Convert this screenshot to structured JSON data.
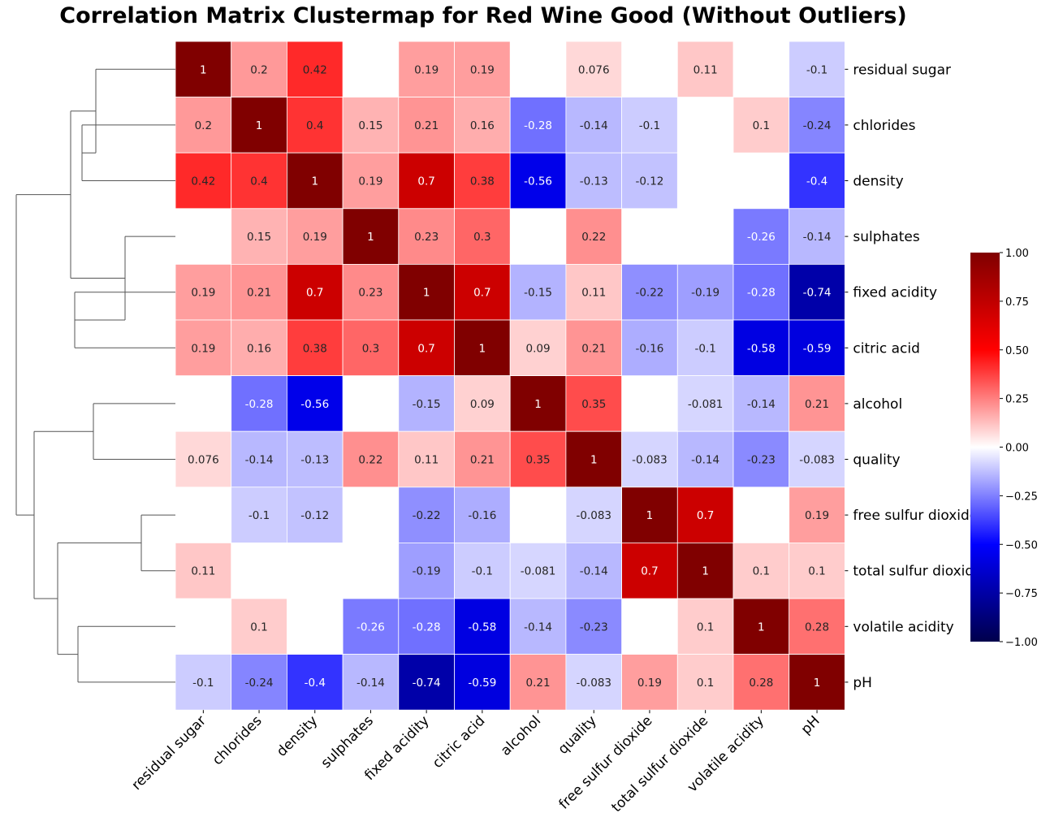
{
  "chart_data": {
    "type": "heatmap",
    "title": "Correlation Matrix Clustermap for Red Wine Good (Without Outliers)",
    "row_labels": [
      "residual sugar",
      "chlorides",
      "density",
      "sulphates",
      "fixed acidity",
      "citric acid",
      "alcohol",
      "quality",
      "free sulfur dioxide",
      "total sulfur dioxide",
      "volatile acidity",
      "pH"
    ],
    "col_labels": [
      "residual sugar",
      "chlorides",
      "density",
      "sulphates",
      "fixed acidity",
      "citric acid",
      "alcohol",
      "quality",
      "free sulfur dioxide",
      "total sulfur dioxide",
      "volatile acidity",
      "pH"
    ],
    "values": [
      [
        1,
        0.2,
        0.42,
        null,
        0.19,
        0.19,
        null,
        0.076,
        null,
        0.11,
        null,
        -0.1
      ],
      [
        0.2,
        1,
        0.4,
        0.15,
        0.21,
        0.16,
        -0.28,
        -0.14,
        -0.1,
        null,
        0.1,
        -0.24
      ],
      [
        0.42,
        0.4,
        1,
        0.19,
        0.7,
        0.38,
        -0.56,
        -0.13,
        -0.12,
        null,
        null,
        -0.4
      ],
      [
        null,
        0.15,
        0.19,
        1,
        0.23,
        0.3,
        null,
        0.22,
        null,
        null,
        -0.26,
        -0.14
      ],
      [
        0.19,
        0.21,
        0.7,
        0.23,
        1,
        0.7,
        -0.15,
        0.11,
        -0.22,
        -0.19,
        -0.28,
        -0.74
      ],
      [
        0.19,
        0.16,
        0.38,
        0.3,
        0.7,
        1,
        0.09,
        0.21,
        -0.16,
        -0.1,
        -0.58,
        -0.59
      ],
      [
        null,
        -0.28,
        -0.56,
        null,
        -0.15,
        0.09,
        1,
        0.35,
        null,
        -0.081,
        -0.14,
        0.21
      ],
      [
        0.076,
        -0.14,
        -0.13,
        0.22,
        0.11,
        0.21,
        0.35,
        1,
        -0.083,
        -0.14,
        -0.23,
        -0.083
      ],
      [
        null,
        -0.1,
        -0.12,
        null,
        -0.22,
        -0.16,
        null,
        -0.083,
        1,
        0.7,
        null,
        0.19
      ],
      [
        0.11,
        null,
        null,
        null,
        -0.19,
        -0.1,
        -0.081,
        -0.14,
        0.7,
        1,
        0.1,
        0.1
      ],
      [
        null,
        0.1,
        null,
        -0.26,
        -0.28,
        -0.58,
        -0.14,
        -0.23,
        null,
        0.1,
        1,
        0.28
      ],
      [
        -0.1,
        -0.24,
        -0.4,
        -0.14,
        -0.74,
        -0.59,
        0.21,
        -0.083,
        0.19,
        0.1,
        0.28,
        1
      ]
    ],
    "colormap": "seismic",
    "vmin": -1,
    "vmax": 1,
    "colorbar_ticks": [
      "1.00",
      "0.75",
      "0.50",
      "0.25",
      "0.00",
      "−0.25",
      "−0.50",
      "−0.75",
      "−1.00"
    ],
    "colorbar_tick_values": [
      1,
      0.75,
      0.5,
      0.25,
      0,
      -0.25,
      -0.5,
      -0.75,
      -1
    ],
    "colorbar_placement": "right",
    "dendrogram_placement": "left",
    "dendrogram_merge_order": [
      {
        "a": "r2",
        "b": "r3"
      },
      {
        "a": "r1",
        "b": "m1"
      },
      {
        "a": "r5",
        "b": "r6"
      },
      {
        "a": "r4",
        "b": "m3"
      },
      {
        "a": "m2",
        "b": "m4"
      },
      {
        "a": "r7",
        "b": "r8"
      },
      {
        "a": "r9",
        "b": "r10"
      },
      {
        "a": "r11",
        "b": "r12"
      },
      {
        "a": "m7",
        "b": "m8"
      },
      {
        "a": "m6",
        "b": "m9"
      },
      {
        "a": "m5",
        "b": "m10"
      }
    ],
    "colors": {
      "negative_dark": "#00004c",
      "negative": "#0000ff",
      "neutral": "#ffffff",
      "positive": "#ff0000",
      "positive_dark": "#800000",
      "dendrogram_line": "#555555"
    }
  }
}
